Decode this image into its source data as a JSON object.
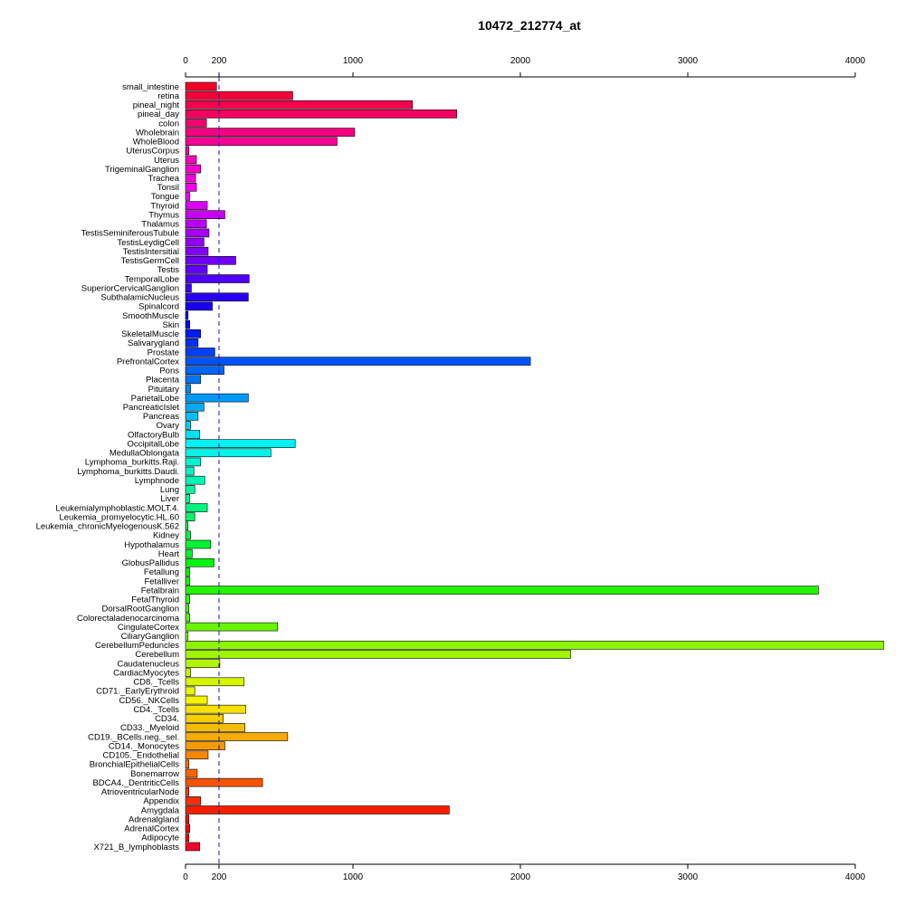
{
  "chart_data": {
    "type": "bar",
    "orientation": "horizontal",
    "title": "10472_212774_at",
    "xlabel": "",
    "ylabel": "",
    "xlim": [
      0,
      4000
    ],
    "x_ticks": [
      "0",
      "200",
      "1000",
      "2000",
      "3000",
      "4000"
    ],
    "x_tick_values": [
      0,
      200,
      1000,
      2000,
      3000,
      4000
    ],
    "reference_line": 200,
    "axes": [
      "top",
      "bottom"
    ],
    "grid": false,
    "legend": "none",
    "color_scheme": "rainbow",
    "categories": [
      "small_intestine",
      "retina",
      "pineal_night",
      "pineal_day",
      "colon",
      "Wholebrain",
      "WholeBlood",
      "UterusCorpus",
      "Uterus",
      "TrigeminalGanglion",
      "Trachea",
      "Tonsil",
      "Tongue",
      "Thyroid",
      "Thymus",
      "Thalamus",
      "TestisSeminiferousTubule",
      "TestisLeydigCell",
      "TestisIntersitial",
      "TestisGermCell",
      "Testis",
      "TemporalLobe",
      "SuperiorCervicalGanglion",
      "SubthalamicNucleus",
      "Spinalcord",
      "SmoothMuscle",
      "Skin",
      "SkeletalMuscle",
      "Salivarygland",
      "Prostate",
      "PrefrontalCortex",
      "Pons",
      "Placenta",
      "Pituitary",
      "ParietalLobe",
      "PancreaticIslet",
      "Pancreas",
      "Ovary",
      "OlfactoryBulb",
      "OccipitalLobe",
      "MedullaOblongata",
      "Lymphoma_burkitts.Raji.",
      "Lymphoma_burkitts.Daudi.",
      "Lymphnode",
      "Lung",
      "Liver",
      "Leukemialymphoblastic.MOLT.4.",
      "Leukemia_promyelocytic.HL.60",
      "Leukemia_chronicMyelogenousK.562",
      "Kidney",
      "Hypothalamus",
      "Heart",
      "GlobusPallidus",
      "Fetallung",
      "Fetalliver",
      "Fetalbrain",
      "FetalThyroid",
      "DorsalRootGanglion",
      "Colorectaladenocarcinoma",
      "CingulateCortex",
      "CiliaryGanglion",
      "CerebellumPeduncles",
      "Cerebellum",
      "Caudatenucleus",
      "CardiacMyocytes",
      "CD8._Tcells",
      "CD71._EarlyErythroid",
      "CD56._NKCells",
      "CD4._Tcells",
      "CD34.",
      "CD33._Myeloid",
      "CD19._BCells.neg._sel.",
      "CD14._Monocytes",
      "CD105._Endothelial",
      "BronchialEpithelialCells",
      "Bonemarrow",
      "BDCA4._DentriticCells",
      "AtrioventricularNode",
      "Appendix",
      "Amygdala",
      "Adrenalgland",
      "AdrenalCortex",
      "Adipocyte",
      "X721_B_lymphoblasts"
    ],
    "values": [
      185,
      640,
      1355,
      1620,
      125,
      1010,
      905,
      20,
      65,
      90,
      60,
      65,
      25,
      130,
      235,
      125,
      140,
      110,
      135,
      300,
      130,
      380,
      35,
      375,
      160,
      15,
      25,
      90,
      75,
      175,
      2060,
      230,
      90,
      30,
      375,
      110,
      75,
      30,
      85,
      655,
      510,
      90,
      50,
      115,
      55,
      25,
      130,
      55,
      15,
      30,
      150,
      40,
      170,
      25,
      25,
      3780,
      25,
      20,
      25,
      550,
      15,
      4170,
      2300,
      205,
      30,
      350,
      55,
      130,
      360,
      225,
      355,
      610,
      235,
      135,
      20,
      70,
      460,
      20,
      90,
      1575,
      20,
      25,
      20,
      85
    ]
  }
}
